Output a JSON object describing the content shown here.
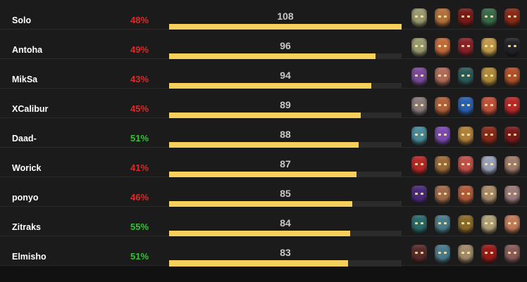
{
  "rows": [
    {
      "name": "Solo",
      "win_rate": "48%",
      "status": "low",
      "count": "108",
      "fill": 1.0,
      "heroes": [
        {
          "icon": "hero-1-icon",
          "color": "#9a9a70"
        },
        {
          "icon": "hero-2-icon",
          "color": "#b4703a"
        },
        {
          "icon": "hero-3-icon",
          "color": "#7a1a18"
        },
        {
          "icon": "hero-4-icon",
          "color": "#3a6a4a"
        },
        {
          "icon": "hero-5-icon",
          "color": "#8a2a1a"
        }
      ]
    },
    {
      "name": "Antoha",
      "win_rate": "49%",
      "status": "low",
      "count": "96",
      "fill": 0.889,
      "heroes": [
        {
          "icon": "hero-1-icon",
          "color": "#9a9a70"
        },
        {
          "icon": "hero-2-icon",
          "color": "#c06a3a"
        },
        {
          "icon": "hero-3-icon",
          "color": "#8a2028"
        },
        {
          "icon": "hero-4-icon",
          "color": "#c09a4a"
        },
        {
          "icon": "hero-5-icon",
          "color": "#222228"
        }
      ]
    },
    {
      "name": "MikSa",
      "win_rate": "43%",
      "status": "low",
      "count": "94",
      "fill": 0.87,
      "heroes": [
        {
          "icon": "hero-1-icon",
          "color": "#7a4a9a"
        },
        {
          "icon": "hero-2-icon",
          "color": "#b06a5a"
        },
        {
          "icon": "hero-3-icon",
          "color": "#2a5a5a"
        },
        {
          "icon": "hero-4-icon",
          "color": "#b08a3a"
        },
        {
          "icon": "hero-5-icon",
          "color": "#b0502a"
        }
      ]
    },
    {
      "name": "XCalibur",
      "win_rate": "45%",
      "status": "low",
      "count": "89",
      "fill": 0.824,
      "heroes": [
        {
          "icon": "hero-1-icon",
          "color": "#8a7a7a"
        },
        {
          "icon": "hero-2-icon",
          "color": "#b0603a"
        },
        {
          "icon": "hero-3-icon",
          "color": "#2a60b0"
        },
        {
          "icon": "hero-4-icon",
          "color": "#c0503a"
        },
        {
          "icon": "hero-5-icon",
          "color": "#b8282a"
        }
      ]
    },
    {
      "name": "Daad-",
      "win_rate": "51%",
      "status": "high",
      "count": "88",
      "fill": 0.815,
      "heroes": [
        {
          "icon": "hero-1-icon",
          "color": "#4a8a9a"
        },
        {
          "icon": "hero-2-icon",
          "color": "#7a4ab0"
        },
        {
          "icon": "hero-3-icon",
          "color": "#b0803a"
        },
        {
          "icon": "hero-4-icon",
          "color": "#8a2a1a"
        },
        {
          "icon": "hero-5-icon",
          "color": "#7a1a1a"
        }
      ]
    },
    {
      "name": "Worick",
      "win_rate": "41%",
      "status": "low",
      "count": "87",
      "fill": 0.806,
      "heroes": [
        {
          "icon": "hero-1-icon",
          "color": "#b82828"
        },
        {
          "icon": "hero-2-icon",
          "color": "#9a6a3a"
        },
        {
          "icon": "hero-3-icon",
          "color": "#c0504a"
        },
        {
          "icon": "hero-4-icon",
          "color": "#9aa0b8"
        },
        {
          "icon": "hero-5-icon",
          "color": "#a07a6a"
        }
      ]
    },
    {
      "name": "ponyo",
      "win_rate": "46%",
      "status": "low",
      "count": "85",
      "fill": 0.787,
      "heroes": [
        {
          "icon": "hero-1-icon",
          "color": "#4a2a7a"
        },
        {
          "icon": "hero-2-icon",
          "color": "#a06a4a"
        },
        {
          "icon": "hero-3-icon",
          "color": "#b05a3a"
        },
        {
          "icon": "hero-4-icon",
          "color": "#a88a6a"
        },
        {
          "icon": "hero-5-icon",
          "color": "#9a7a7a"
        }
      ]
    },
    {
      "name": "Zitraks",
      "win_rate": "55%",
      "status": "high",
      "count": "84",
      "fill": 0.778,
      "heroes": [
        {
          "icon": "hero-1-icon",
          "color": "#2a6a6a"
        },
        {
          "icon": "hero-2-icon",
          "color": "#4a7a8a"
        },
        {
          "icon": "hero-3-icon",
          "color": "#8a6a2a"
        },
        {
          "icon": "hero-4-icon",
          "color": "#b0a07a"
        },
        {
          "icon": "hero-5-icon",
          "color": "#c07a5a"
        }
      ]
    },
    {
      "name": "Elmisho",
      "win_rate": "51%",
      "status": "high",
      "count": "83",
      "fill": 0.769,
      "heroes": [
        {
          "icon": "hero-1-icon",
          "color": "#5a2a2a"
        },
        {
          "icon": "hero-2-icon",
          "color": "#4a7a8a"
        },
        {
          "icon": "hero-3-icon",
          "color": "#a08a6a"
        },
        {
          "icon": "hero-4-icon",
          "color": "#9a1a1a"
        },
        {
          "icon": "hero-5-icon",
          "color": "#8a5a5a"
        }
      ]
    }
  ],
  "colors": {
    "win_high": "#35c135",
    "win_low": "#d92b2b",
    "bar": "#f7d05b"
  }
}
